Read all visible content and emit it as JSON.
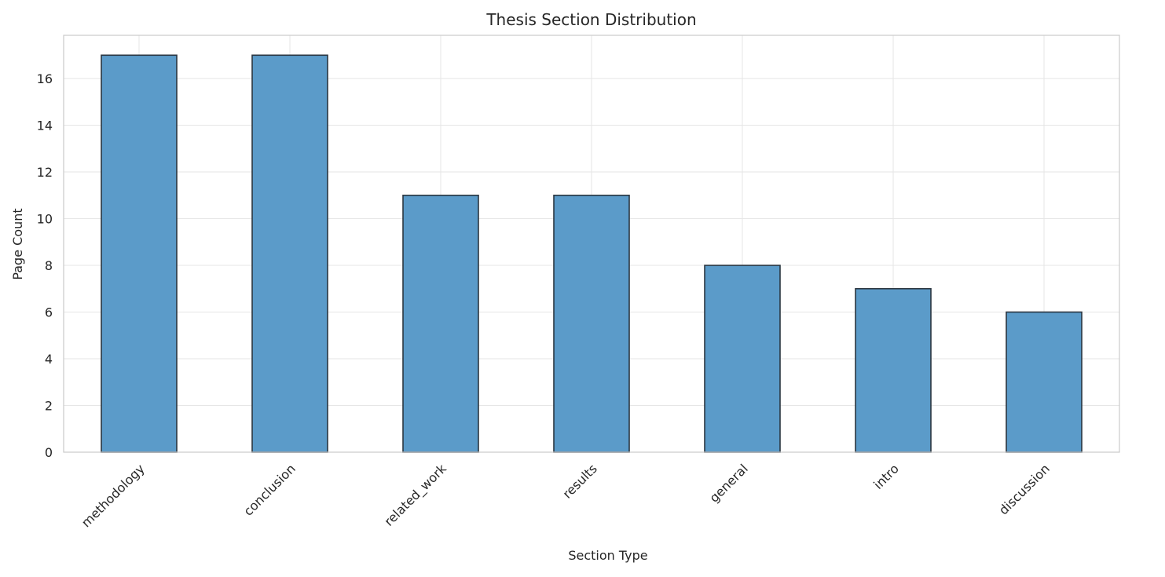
{
  "chart_data": {
    "type": "bar",
    "title": "Thesis Section Distribution",
    "xlabel": "Section Type",
    "ylabel": "Page Count",
    "categories": [
      "methodology",
      "conclusion",
      "related_work",
      "results",
      "general",
      "intro",
      "discussion"
    ],
    "values": [
      17,
      17,
      11,
      11,
      8,
      7,
      6
    ],
    "ylim": [
      0,
      17.85
    ],
    "yticks": [
      0,
      2,
      4,
      6,
      8,
      10,
      12,
      14,
      16
    ],
    "grid": true,
    "legend": "none",
    "x_tick_rotation": "45 degrees",
    "colors": {
      "bar_fill": "#5b9bc9",
      "bar_edge": "#2b3640",
      "grid": "#e6e6e6",
      "spine": "#cccccc",
      "text": "#262626"
    }
  }
}
